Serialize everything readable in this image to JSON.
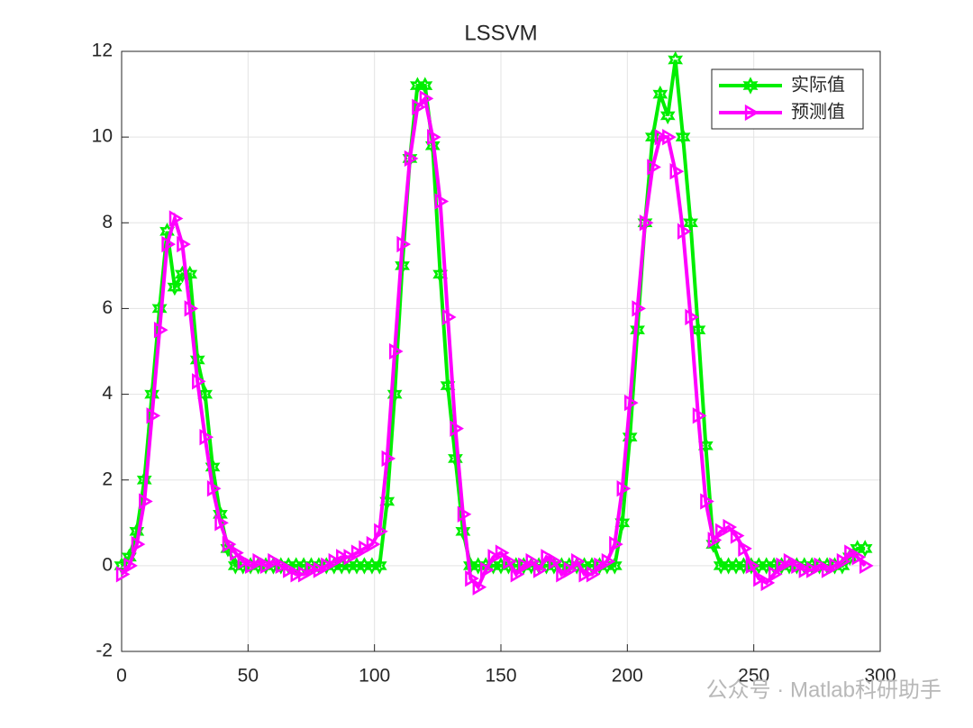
{
  "chart_data": {
    "type": "line",
    "title": "LSSVM",
    "x": [
      0,
      3,
      6,
      9,
      12,
      15,
      18,
      21,
      24,
      27,
      30,
      33,
      36,
      39,
      42,
      45,
      48,
      51,
      54,
      57,
      60,
      63,
      66,
      69,
      72,
      75,
      78,
      81,
      84,
      87,
      90,
      93,
      96,
      99,
      102,
      105,
      108,
      111,
      114,
      117,
      120,
      123,
      126,
      129,
      132,
      135,
      138,
      141,
      144,
      147,
      150,
      153,
      156,
      159,
      162,
      165,
      168,
      171,
      174,
      177,
      180,
      183,
      186,
      189,
      192,
      195,
      198,
      201,
      204,
      207,
      210,
      213,
      216,
      219,
      222,
      225,
      228,
      231,
      234,
      237,
      240,
      243,
      246,
      249,
      252,
      255,
      258,
      261,
      264,
      267,
      270,
      273,
      276,
      279,
      282,
      285,
      288,
      291,
      294
    ],
    "series": [
      {
        "name": "实际值",
        "color": "#00ee00",
        "marker": "star",
        "values": [
          0,
          0.2,
          0.8,
          2,
          4,
          6,
          7.8,
          6.5,
          6.8,
          6.8,
          4.8,
          4,
          2.3,
          1.2,
          0.4,
          0,
          0,
          0,
          0,
          0,
          0,
          0,
          0,
          0,
          0,
          0,
          0,
          0,
          0,
          0,
          0,
          0,
          0,
          0,
          0,
          1.5,
          4,
          7,
          9.5,
          11.2,
          11.2,
          9.8,
          6.8,
          4.2,
          2.5,
          0.8,
          0,
          0,
          0,
          0,
          0,
          0,
          0,
          0,
          0,
          0,
          0,
          0,
          0,
          0,
          0,
          0,
          0,
          0,
          0,
          0,
          1,
          3,
          5.5,
          8,
          10,
          11,
          10.5,
          11.8,
          10,
          8,
          5.5,
          2.8,
          0.5,
          0,
          0,
          0,
          0,
          0,
          0,
          0,
          0,
          0,
          0,
          0,
          0,
          0,
          0,
          0,
          0,
          0,
          0.2,
          0.4,
          0.4
        ]
      },
      {
        "name": "预测值",
        "color": "#ff00ff",
        "marker": "triangle-right",
        "values": [
          -0.2,
          0,
          0.5,
          1.5,
          3.5,
          5.5,
          7.5,
          8.1,
          7.5,
          6,
          4.3,
          3,
          1.8,
          1,
          0.5,
          0.3,
          0.1,
          0,
          0.1,
          0,
          0.1,
          0,
          -0.1,
          -0.2,
          -0.2,
          -0.1,
          -0.1,
          0,
          0.1,
          0.2,
          0.2,
          0.3,
          0.4,
          0.5,
          0.8,
          2.5,
          5,
          7.5,
          9.5,
          10.7,
          10.9,
          10,
          8.5,
          5.8,
          3.2,
          1.2,
          -0.3,
          -0.5,
          -0.1,
          0.2,
          0.3,
          0.1,
          -0.2,
          0,
          0.1,
          -0.1,
          0.2,
          0.1,
          -0.2,
          -0.1,
          0.1,
          -0.2,
          -0.2,
          0,
          0.1,
          0.5,
          1.8,
          3.8,
          6,
          8,
          9.3,
          10,
          10,
          9.2,
          7.8,
          5.8,
          3.5,
          1.5,
          0.6,
          0.8,
          0.9,
          0.7,
          0.4,
          0,
          -0.3,
          -0.4,
          -0.2,
          0,
          0.1,
          0,
          -0.1,
          -0.1,
          0,
          -0.1,
          0,
          0.1,
          0.3,
          0.2,
          0
        ]
      }
    ],
    "xlim": [
      0,
      300
    ],
    "xticks": [
      0,
      50,
      100,
      150,
      200,
      250,
      300
    ],
    "ylim": [
      -2,
      12
    ],
    "yticks": [
      -2,
      0,
      2,
      4,
      6,
      8,
      10,
      12
    ],
    "grid": true,
    "legend": "top-right",
    "watermark": "公众号 · Matlab科研助手"
  }
}
